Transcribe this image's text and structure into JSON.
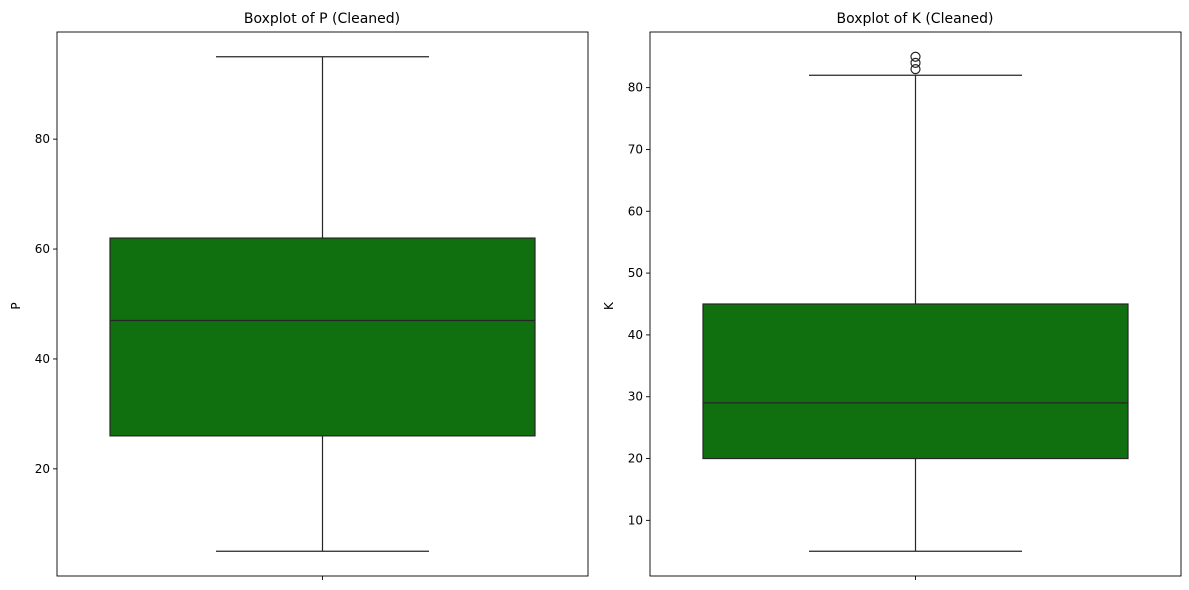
{
  "colors": {
    "box_fill": "#107010",
    "line": "#262626",
    "frame": "#000000",
    "background": "#ffffff"
  },
  "chart_data": [
    {
      "type": "box",
      "title": "Boxplot of P (Cleaned)",
      "xlabel": "",
      "ylabel": "P",
      "ylim": [
        0.5,
        99.5
      ],
      "yticks": [
        20,
        40,
        60,
        80
      ],
      "box": {
        "whisker_low": 5,
        "q1": 26,
        "median": 47,
        "q3": 62,
        "whisker_high": 95,
        "outliers": []
      }
    },
    {
      "type": "box",
      "title": "Boxplot of K (Cleaned)",
      "xlabel": "",
      "ylabel": "K",
      "ylim": [
        1,
        89
      ],
      "yticks": [
        10,
        20,
        30,
        40,
        50,
        60,
        70,
        80
      ],
      "box": {
        "whisker_low": 5,
        "q1": 20,
        "median": 29,
        "q3": 45,
        "whisker_high": 82,
        "outliers": [
          83,
          84,
          85
        ]
      }
    }
  ]
}
